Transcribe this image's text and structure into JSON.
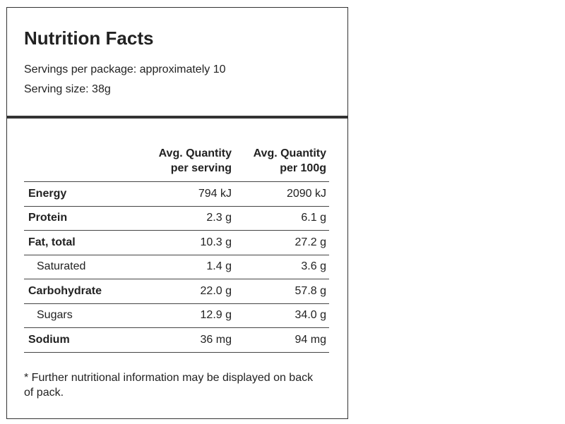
{
  "header": {
    "title": "Nutrition Facts",
    "servings": "Servings per package: approximately 10",
    "serving_size": "Serving size: 38g"
  },
  "table": {
    "columns": [
      [
        "Avg. Quantity",
        "per serving"
      ],
      [
        "Avg. Quantity",
        "per 100g"
      ]
    ],
    "rows": [
      [
        "Energy",
        "794 kJ",
        "2090 kJ"
      ],
      [
        "Protein",
        "2.3 g",
        "6.1 g"
      ],
      [
        "Fat, total",
        "10.3 g",
        "27.2 g"
      ],
      [
        "Saturated",
        "1.4 g",
        "3.6 g"
      ],
      [
        "Carbohydrate",
        "22.0 g",
        "57.8 g"
      ],
      [
        "Sugars",
        "12.9 g",
        "34.0 g"
      ],
      [
        "Sodium",
        "36 mg",
        "94 mg"
      ]
    ]
  },
  "footnote": "* Further nutritional information may be displayed on back of pack."
}
